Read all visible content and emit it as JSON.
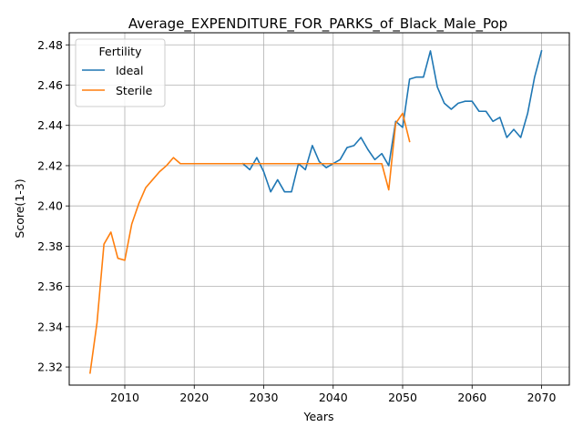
{
  "chart_data": {
    "type": "line",
    "title": "Average_EXPENDITURE_FOR_PARKS_of_Black_Male_Pop",
    "xlabel": "Years",
    "ylabel": "Score(1-3)",
    "xlim": [
      2002,
      2074
    ],
    "ylim": [
      2.311,
      2.486
    ],
    "x_ticks": [
      2010,
      2020,
      2030,
      2040,
      2050,
      2060,
      2070
    ],
    "y_ticks": [
      2.32,
      2.34,
      2.36,
      2.38,
      2.4,
      2.42,
      2.44,
      2.46,
      2.48
    ],
    "y_tick_labels": [
      "2.32",
      "2.34",
      "2.36",
      "2.38",
      "2.40",
      "2.42",
      "2.44",
      "2.46",
      "2.48"
    ],
    "grid": true,
    "legend": {
      "title": "Fertility",
      "placement": "top-left"
    },
    "series": [
      {
        "name": "Ideal",
        "color": "#1f77b4",
        "x": [
          2027,
          2028,
          2029,
          2030,
          2031,
          2032,
          2033,
          2034,
          2035,
          2036,
          2037,
          2038,
          2039,
          2040,
          2041,
          2042,
          2043,
          2044,
          2045,
          2046,
          2047,
          2048,
          2049,
          2050,
          2051,
          2052,
          2053,
          2054,
          2055,
          2056,
          2057,
          2058,
          2059,
          2060,
          2061,
          2062,
          2063,
          2064,
          2065,
          2066,
          2067,
          2068,
          2069,
          2070
        ],
        "y": [
          2.421,
          2.418,
          2.424,
          2.417,
          2.407,
          2.413,
          2.407,
          2.407,
          2.421,
          2.418,
          2.43,
          2.422,
          2.419,
          2.421,
          2.423,
          2.429,
          2.43,
          2.434,
          2.428,
          2.423,
          2.426,
          2.42,
          2.442,
          2.439,
          2.463,
          2.464,
          2.464,
          2.477,
          2.459,
          2.451,
          2.448,
          2.451,
          2.452,
          2.452,
          2.447,
          2.447,
          2.442,
          2.444,
          2.434,
          2.438,
          2.434,
          2.446,
          2.464,
          2.477
        ]
      },
      {
        "name": "Sterile",
        "color": "#ff7f0e",
        "x": [
          2005,
          2006,
          2007,
          2008,
          2009,
          2010,
          2011,
          2012,
          2013,
          2014,
          2015,
          2016,
          2017,
          2018,
          2019,
          2020,
          2021,
          2022,
          2023,
          2024,
          2025,
          2026,
          2027,
          2028,
          2029,
          2030,
          2031,
          2032,
          2033,
          2034,
          2035,
          2036,
          2037,
          2038,
          2039,
          2040,
          2041,
          2042,
          2043,
          2044,
          2045,
          2046,
          2047,
          2048,
          2049,
          2050,
          2051
        ],
        "y": [
          2.317,
          2.342,
          2.381,
          2.387,
          2.374,
          2.373,
          2.391,
          2.401,
          2.409,
          2.413,
          2.417,
          2.42,
          2.424,
          2.421,
          2.421,
          2.421,
          2.421,
          2.421,
          2.421,
          2.421,
          2.421,
          2.421,
          2.421,
          2.421,
          2.421,
          2.421,
          2.421,
          2.421,
          2.421,
          2.421,
          2.421,
          2.421,
          2.421,
          2.421,
          2.421,
          2.421,
          2.421,
          2.421,
          2.421,
          2.421,
          2.421,
          2.421,
          2.421,
          2.408,
          2.441,
          2.446,
          2.432
        ]
      }
    ]
  }
}
